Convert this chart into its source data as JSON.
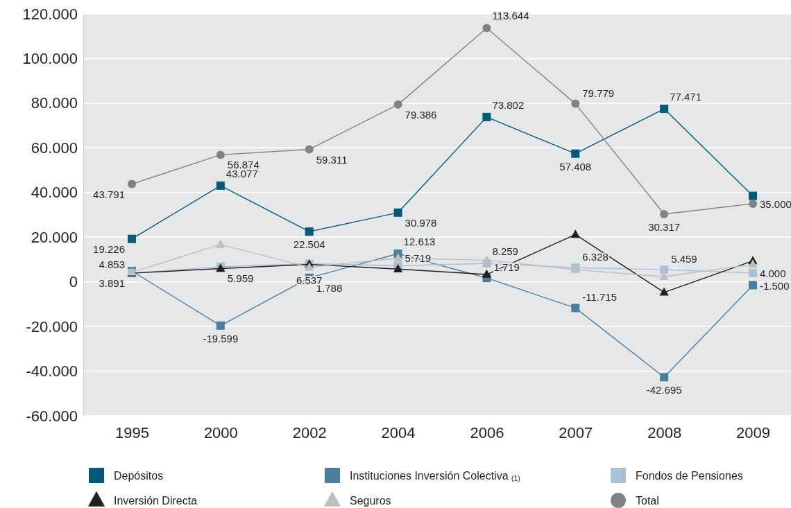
{
  "chart_data": {
    "type": "line",
    "categories": [
      "1995",
      "2000",
      "2002",
      "2004",
      "2006",
      "2007",
      "2008",
      "2009"
    ],
    "ylim": [
      -60000,
      120000
    ],
    "yticks": [
      {
        "value": -60000,
        "label": "-60.000"
      },
      {
        "value": -40000,
        "label": "-40.000"
      },
      {
        "value": -20000,
        "label": "-20.000"
      },
      {
        "value": 0,
        "label": "0"
      },
      {
        "value": 20000,
        "label": "20.000"
      },
      {
        "value": 40000,
        "label": "40.000"
      },
      {
        "value": 60000,
        "label": "60.000"
      },
      {
        "value": 80000,
        "label": "80.000"
      },
      {
        "value": 100000,
        "label": "100.000"
      },
      {
        "value": 120000,
        "label": "120.000"
      }
    ],
    "grid": "y",
    "legend": "bottom",
    "line_style": "solid",
    "series": [
      {
        "name": "Depósitos",
        "color": "#005b7b",
        "marker": "square",
        "values": [
          19226,
          43077,
          22504,
          30978,
          73802,
          57408,
          77471,
          38500
        ],
        "value_labels": [
          "19.226",
          "43.077",
          "22.504",
          "30.978",
          "73.802",
          "57.408",
          "77.471",
          null
        ]
      },
      {
        "name": "Instituciones Inversión Colectiva $_{(1)}$",
        "color": "#4a7e9e",
        "marker": "square",
        "values": [
          4853,
          -19599,
          1788,
          12613,
          1719,
          -11715,
          -42695,
          -1500
        ],
        "value_labels": [
          "4.853",
          "-19.599",
          "1.788",
          "12.613",
          "1.719",
          "-11.715",
          "-42.695",
          "-1.500"
        ]
      },
      {
        "name": "Fondos de Pensiones",
        "color": "#a8c1d6",
        "marker": "square",
        "values": [
          3900,
          6800,
          8100,
          7200,
          8259,
          6328,
          5459,
          4000
        ],
        "value_labels": [
          null,
          null,
          null,
          null,
          "8.259",
          "6.328",
          "5.459",
          "4.000"
        ]
      },
      {
        "name": "Inversión Directa",
        "color": "#231f20",
        "marker": "triangle",
        "values": [
          3891,
          5959,
          7800,
          5719,
          3300,
          21200,
          -4700,
          9400
        ],
        "value_labels": [
          "3.891",
          "5.959",
          null,
          "5.719",
          null,
          null,
          null,
          null
        ]
      },
      {
        "name": "Seguros",
        "color": "#bcbec0",
        "marker": "triangle",
        "values": [
          4300,
          16700,
          6537,
          10600,
          9700,
          5500,
          2300,
          7800
        ],
        "value_labels": [
          null,
          null,
          "6.537",
          null,
          null,
          null,
          null,
          null
        ]
      },
      {
        "name": "Total",
        "color": "#808285",
        "marker": "circle",
        "values": [
          43791,
          56874,
          59311,
          79386,
          113644,
          79779,
          30317,
          35000
        ],
        "value_labels": [
          "43.791",
          "56.874",
          "59.311",
          "79.386",
          "113.644",
          "79.779",
          "30.317",
          "35.000"
        ]
      }
    ]
  }
}
